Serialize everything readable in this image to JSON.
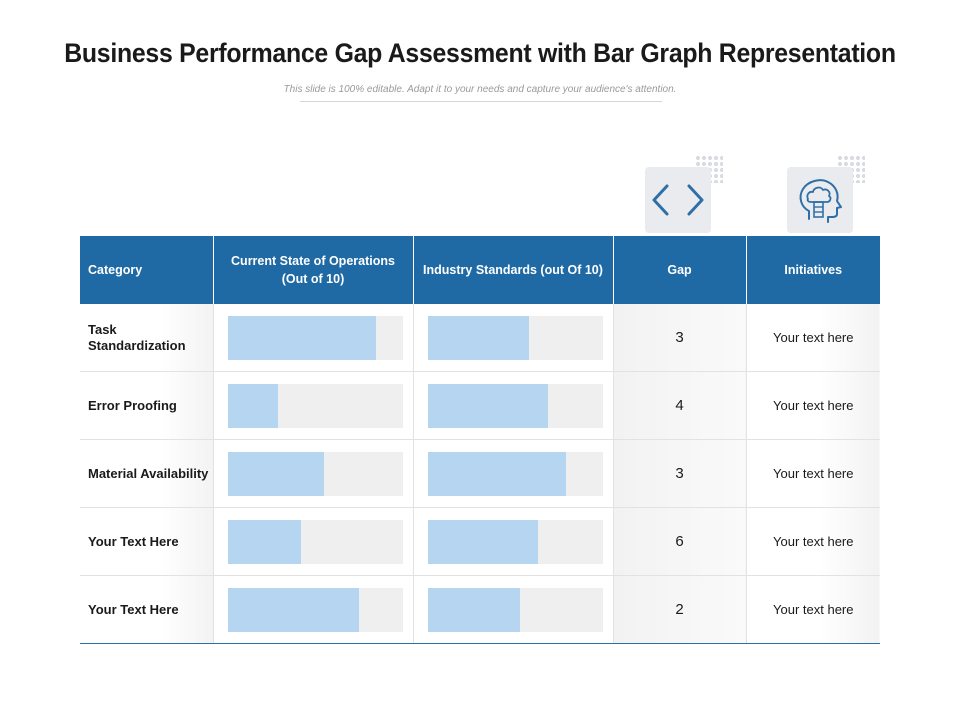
{
  "header": {
    "title": "Business Performance Gap Assessment with Bar Graph Representation",
    "subtitle": "This slide is 100% editable. Adapt it to your needs and capture your audience's attention."
  },
  "icons": {
    "left": "code-brackets-icon",
    "right": "brain-cloud-icon",
    "accent_color": "#2f6fa8"
  },
  "table": {
    "columns": [
      "Category",
      "Current State of Operations (Out of 10)",
      "Industry Standards (out Of 10)",
      "Gap",
      "Initiatives"
    ],
    "header_color": "#1f6aa5",
    "bar_color": "#b5d5f0",
    "bar_track_color": "#efefef",
    "rows": [
      {
        "category": "Task Standardization",
        "current_fraction": 0.85,
        "industry_fraction": 0.58,
        "gap": "3",
        "initiative": "Your text here"
      },
      {
        "category": "Error Proofing",
        "current_fraction": 0.29,
        "industry_fraction": 0.69,
        "gap": "4",
        "initiative": "Your text here"
      },
      {
        "category": "Material Availability",
        "current_fraction": 0.55,
        "industry_fraction": 0.79,
        "gap": "3",
        "initiative": "Your text here"
      },
      {
        "category": "Your Text Here",
        "current_fraction": 0.42,
        "industry_fraction": 0.63,
        "gap": "6",
        "initiative": "Your text here"
      },
      {
        "category": "Your Text Here",
        "current_fraction": 0.75,
        "industry_fraction": 0.53,
        "gap": "2",
        "initiative": "Your text here"
      }
    ]
  }
}
